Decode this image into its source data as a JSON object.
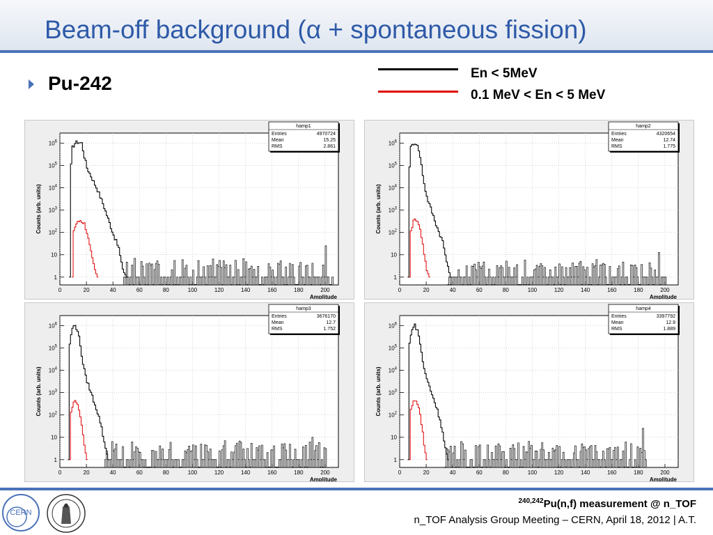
{
  "slide": {
    "title": "Beam-off background (α + spontaneous fission)",
    "bullet": "Pu-242",
    "legend": [
      {
        "label": "En < 5MeV",
        "color": "#000000"
      },
      {
        "label": "0.1 MeV < En < 5 MeV",
        "color": "#e00000"
      }
    ],
    "footer_sup": "240,242",
    "footer_title": "Pu(n,f) measurement @ n_TOF",
    "footer_subtitle": "n_TOF Analysis Group Meeting – CERN, April 18, 2012 | A.T.",
    "logo_left": "CERN"
  },
  "chart_data": [
    {
      "type": "line",
      "name": "hamp1",
      "stats": {
        "Entries": "4970724",
        "Mean": "15.25",
        "RMS": "2.861"
      },
      "xlabel": "Amplitude",
      "ylabel": "Counts (arb. units)",
      "xlim": [
        0,
        210
      ],
      "log_y": true,
      "x_ticks": [
        0,
        20,
        40,
        60,
        80,
        100,
        120,
        140,
        160,
        180,
        200
      ],
      "y_ticks": [
        "1",
        "10",
        "10^2",
        "10^3",
        "10^4",
        "10^5",
        "10^6"
      ],
      "series": [
        {
          "color": "#000000",
          "points": [
            [
              7,
              0
            ],
            [
              8,
              5
            ],
            [
              9,
              5.8
            ],
            [
              11,
              6
            ],
            [
              13,
              6.05
            ],
            [
              16,
              6
            ],
            [
              18,
              5.4
            ],
            [
              20,
              4.9
            ],
            [
              24,
              4.4
            ],
            [
              28,
              3.9
            ],
            [
              32,
              3.3
            ],
            [
              36,
              2.6
            ],
            [
              40,
              1.9
            ],
            [
              44,
              1.3
            ],
            [
              46,
              0.6
            ],
            [
              48,
              0.2
            ],
            [
              50,
              0
            ]
          ]
        },
        {
          "color": "#e00000",
          "points": [
            [
              9,
              0
            ],
            [
              10,
              2.1
            ],
            [
              12,
              2.4
            ],
            [
              15,
              2.55
            ],
            [
              18,
              2.4
            ],
            [
              20,
              2.0
            ],
            [
              22,
              1.4
            ],
            [
              24,
              0.8
            ],
            [
              26,
              0.3
            ],
            [
              28,
              0
            ]
          ]
        }
      ],
      "tail": {
        "range": [
          48,
          205
        ],
        "level": 0.7,
        "spike_at": 200,
        "spike_level": 1.4
      }
    },
    {
      "type": "line",
      "name": "hamp2",
      "stats": {
        "Entries": "4320654",
        "Mean": "12.74",
        "RMS": "1.775"
      },
      "xlabel": "Amplitude",
      "ylabel": "Counts (arb. units)",
      "xlim": [
        0,
        210
      ],
      "log_y": true,
      "x_ticks": [
        0,
        20,
        40,
        60,
        80,
        100,
        120,
        140,
        160,
        180,
        200
      ],
      "y_ticks": [
        "1",
        "10",
        "10^2",
        "10^3",
        "10^4",
        "10^5",
        "10^6"
      ],
      "series": [
        {
          "color": "#000000",
          "points": [
            [
              6,
              0
            ],
            [
              7,
              5
            ],
            [
              8,
              5.8
            ],
            [
              10,
              6
            ],
            [
              12,
              6
            ],
            [
              14,
              5.7
            ],
            [
              16,
              5.0
            ],
            [
              18,
              4.2
            ],
            [
              20,
              3.6
            ],
            [
              24,
              2.9
            ],
            [
              28,
              2.2
            ],
            [
              32,
              1.6
            ],
            [
              34,
              1.0
            ],
            [
              36,
              0.4
            ],
            [
              38,
              0
            ]
          ]
        },
        {
          "color": "#e00000",
          "points": [
            [
              7,
              0
            ],
            [
              8,
              2.1
            ],
            [
              10,
              2.5
            ],
            [
              12,
              2.6
            ],
            [
              14,
              2.4
            ],
            [
              16,
              1.8
            ],
            [
              18,
              1.0
            ],
            [
              20,
              0.3
            ],
            [
              22,
              0
            ]
          ]
        }
      ],
      "tail": {
        "range": [
          36,
          200
        ],
        "level": 0.75,
        "spike_at": 195,
        "spike_level": 1.1
      }
    },
    {
      "type": "line",
      "name": "hamp3",
      "stats": {
        "Entries": "3676170",
        "Mean": "12.7",
        "RMS": "1.752"
      },
      "xlabel": "Amplitude",
      "ylabel": "Counts (arb. units)",
      "xlim": [
        0,
        210
      ],
      "log_y": true,
      "x_ticks": [
        0,
        20,
        40,
        60,
        80,
        100,
        120,
        140,
        160,
        180,
        200
      ],
      "y_ticks": [
        "1",
        "10",
        "10^2",
        "10^3",
        "10^4",
        "10^5",
        "10^6"
      ],
      "series": [
        {
          "color": "#000000",
          "points": [
            [
              6,
              0
            ],
            [
              7,
              5.2
            ],
            [
              9,
              5.9
            ],
            [
              11,
              6
            ],
            [
              13,
              5.8
            ],
            [
              15,
              5.1
            ],
            [
              17,
              4.3
            ],
            [
              19,
              3.7
            ],
            [
              23,
              3.0
            ],
            [
              27,
              2.3
            ],
            [
              30,
              1.7
            ],
            [
              32,
              1.1
            ],
            [
              34,
              0.5
            ],
            [
              36,
              0
            ]
          ]
        },
        {
          "color": "#e00000",
          "points": [
            [
              7,
              0
            ],
            [
              8,
              2.2
            ],
            [
              10,
              2.55
            ],
            [
              12,
              2.6
            ],
            [
              14,
              2.3
            ],
            [
              16,
              1.5
            ],
            [
              18,
              0.6
            ],
            [
              20,
              0
            ]
          ]
        }
      ],
      "tail": {
        "range": [
          34,
          200
        ],
        "level": 0.75,
        "spike_at": 190,
        "spike_level": 1.0
      }
    },
    {
      "type": "line",
      "name": "hamp4",
      "stats": {
        "Entries": "3397792",
        "Mean": "12.9",
        "RMS": "1.889"
      },
      "xlabel": "Amplitude",
      "ylabel": "Counts (arb. units)",
      "xlim": [
        0,
        210
      ],
      "log_y": true,
      "x_ticks": [
        0,
        20,
        40,
        60,
        80,
        100,
        120,
        140,
        160,
        180,
        200
      ],
      "y_ticks": [
        "1",
        "10",
        "10^2",
        "10^3",
        "10^4",
        "10^5",
        "10^6"
      ],
      "series": [
        {
          "color": "#000000",
          "points": [
            [
              6,
              0
            ],
            [
              7,
              5.2
            ],
            [
              9,
              5.9
            ],
            [
              11,
              6
            ],
            [
              13,
              5.8
            ],
            [
              15,
              5.2
            ],
            [
              17,
              4.4
            ],
            [
              19,
              3.8
            ],
            [
              23,
              3.1
            ],
            [
              27,
              2.4
            ],
            [
              30,
              1.8
            ],
            [
              32,
              1.2
            ],
            [
              34,
              0.5
            ],
            [
              36,
              0
            ]
          ]
        },
        {
          "color": "#e00000",
          "points": [
            [
              7,
              0
            ],
            [
              8,
              2.2
            ],
            [
              10,
              2.55
            ],
            [
              12,
              2.6
            ],
            [
              14,
              2.4
            ],
            [
              16,
              1.6
            ],
            [
              18,
              0.7
            ],
            [
              20,
              0
            ]
          ]
        }
      ],
      "tail": {
        "range": [
          34,
          185
        ],
        "level": 0.7,
        "spike_at": 183,
        "spike_level": 1.4
      }
    }
  ]
}
